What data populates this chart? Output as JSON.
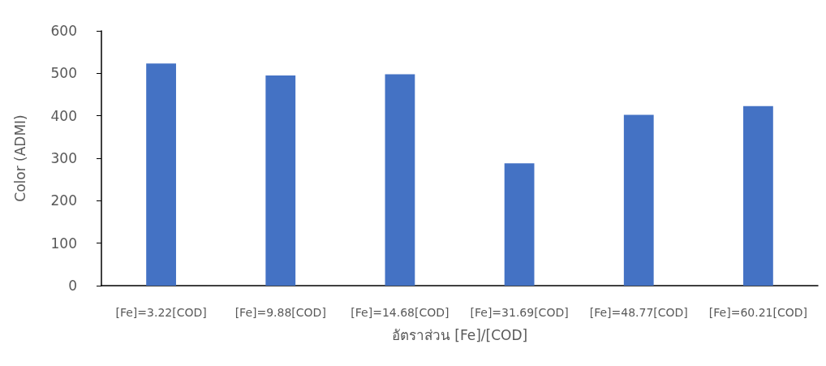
{
  "chart_data": {
    "type": "bar",
    "xlabel": "อัตราส่วน [Fe]/[COD]",
    "ylabel": "Color (ADMI)",
    "categories": [
      "[Fe]=3.22[COD]",
      "[Fe]=9.88[COD]",
      "[Fe]=14.68[COD]",
      "[Fe]=31.69[COD]",
      "[Fe]=48.77[COD]",
      "[Fe]=60.21[COD]"
    ],
    "values": [
      523,
      495,
      498,
      288,
      402,
      423
    ],
    "color": "#4472c4",
    "ylim": [
      0,
      600
    ],
    "yticks": [
      0,
      100,
      200,
      300,
      400,
      500,
      600
    ],
    "grid": false
  }
}
